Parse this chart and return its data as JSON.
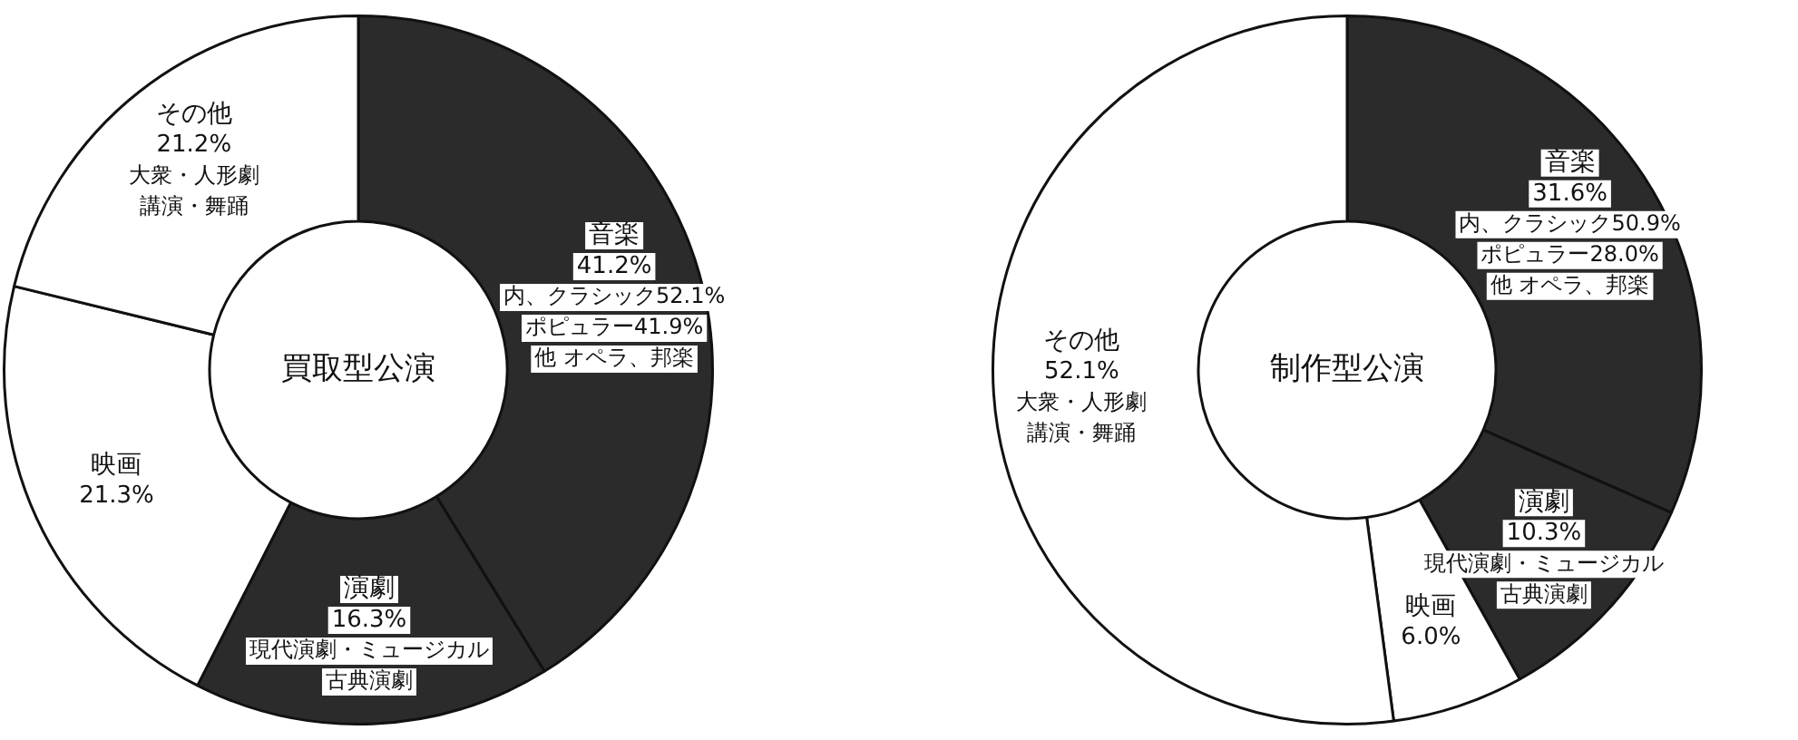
{
  "chart_data": [
    {
      "type": "donut",
      "title": "買取型公演",
      "categories": [
        "音楽",
        "演劇",
        "映画",
        "その他"
      ],
      "values": [
        41.2,
        16.3,
        21.3,
        21.2
      ],
      "value_labels": [
        "41.2%",
        "16.3%",
        "21.3%",
        "21.2%"
      ],
      "colors": [
        "#2b2b2b",
        "#2b2b2b",
        "#ffffff",
        "#ffffff"
      ],
      "legend": false,
      "annotations": [
        {
          "text": "内、クラシック52.1%",
          "x": "音楽"
        },
        {
          "text": "ポピュラー41.9%",
          "x": "音楽"
        },
        {
          "text": "他 オペラ、邦楽",
          "x": "音楽"
        },
        {
          "text": "現代演劇・ミュージカル",
          "x": "演劇"
        },
        {
          "text": "古典演劇",
          "x": "演劇"
        },
        {
          "text": "大衆・人形劇",
          "x": "その他"
        },
        {
          "text": "講演・舞踊",
          "x": "その他"
        }
      ]
    },
    {
      "type": "donut",
      "title": "制作型公演",
      "categories": [
        "音楽",
        "演劇",
        "映画",
        "その他"
      ],
      "values": [
        31.6,
        10.3,
        6.0,
        52.1
      ],
      "value_labels": [
        "31.6%",
        "10.3%",
        "6.0%",
        "52.1%"
      ],
      "colors": [
        "#2b2b2b",
        "#2b2b2b",
        "#ffffff",
        "#ffffff"
      ],
      "legend": false,
      "annotations": [
        {
          "text": "内、クラシック50.9%",
          "x": "音楽"
        },
        {
          "text": "ポピュラー28.0%",
          "x": "音楽"
        },
        {
          "text": "他 オペラ、邦楽",
          "x": "音楽"
        },
        {
          "text": "現代演劇・ミュージカル",
          "x": "演劇"
        },
        {
          "text": "古典演劇",
          "x": "演劇"
        },
        {
          "text": "大衆・人形劇",
          "x": "その他"
        },
        {
          "text": "講演・舞踊",
          "x": "その他"
        }
      ]
    }
  ]
}
